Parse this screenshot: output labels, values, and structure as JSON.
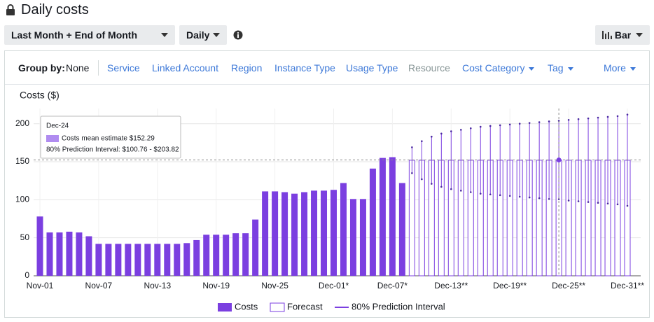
{
  "header": {
    "title": "Daily costs"
  },
  "controls": {
    "date_range": "Last Month + End of Month",
    "granularity": "Daily",
    "chart_style": "Bar"
  },
  "group_by": {
    "label": "Group by:",
    "value": "None",
    "options": [
      "Service",
      "Linked Account",
      "Region",
      "Instance Type",
      "Usage Type",
      "Resource",
      "Cost Category",
      "Tag",
      "More"
    ]
  },
  "chart_data": {
    "type": "bar",
    "ylabel": "Costs ($)",
    "categories": [
      "Nov-01",
      null,
      null,
      null,
      null,
      null,
      "Nov-07",
      null,
      null,
      null,
      null,
      null,
      "Nov-13",
      null,
      null,
      null,
      null,
      null,
      "Nov-19",
      null,
      null,
      null,
      null,
      null,
      "Nov-25",
      null,
      null,
      null,
      null,
      null,
      "Dec-01*",
      null,
      null,
      null,
      null,
      null,
      "Dec-07*",
      null,
      null,
      null,
      null,
      null,
      "Dec-13**",
      null,
      null,
      null,
      null,
      null,
      "Dec-19**",
      null,
      null,
      null,
      null,
      null,
      "Dec-25**",
      null,
      null,
      null,
      null,
      null,
      "Dec-31**"
    ],
    "series": [
      {
        "name": "Costs",
        "color": "#7b3fe0",
        "values": [
          78,
          57,
          57,
          58,
          57,
          52,
          42,
          42,
          42,
          42,
          42,
          42,
          42,
          42,
          42,
          43,
          47,
          54,
          54,
          54,
          56,
          56,
          74,
          111,
          111,
          110,
          108,
          110,
          112,
          112,
          113,
          122,
          101,
          101,
          141,
          155,
          156,
          122,
          null,
          null,
          null,
          null,
          null,
          null,
          null,
          null,
          null,
          null,
          null,
          null,
          null,
          null,
          null,
          null,
          null,
          null,
          null,
          null,
          null,
          null,
          null
        ]
      },
      {
        "name": "Forecast",
        "color": "#7b3fe0",
        "values": [
          null,
          null,
          null,
          null,
          null,
          null,
          null,
          null,
          null,
          null,
          null,
          null,
          null,
          null,
          null,
          null,
          null,
          null,
          null,
          null,
          null,
          null,
          null,
          null,
          null,
          null,
          null,
          null,
          null,
          null,
          null,
          null,
          null,
          null,
          null,
          null,
          null,
          null,
          152,
          152,
          152,
          152,
          152,
          152,
          152,
          152,
          152,
          152,
          152,
          152,
          152,
          152,
          152,
          152.29,
          152,
          152,
          152,
          152,
          152,
          152,
          152
        ]
      },
      {
        "name": "80% Prediction Interval",
        "color": "#7b3fe0",
        "low": [
          null,
          null,
          null,
          null,
          null,
          null,
          null,
          null,
          null,
          null,
          null,
          null,
          null,
          null,
          null,
          null,
          null,
          null,
          null,
          null,
          null,
          null,
          null,
          null,
          null,
          null,
          null,
          null,
          null,
          null,
          null,
          null,
          null,
          null,
          null,
          null,
          null,
          null,
          135,
          127,
          121,
          117,
          114,
          112,
          110,
          108,
          107,
          106,
          105,
          104,
          103,
          102,
          101,
          100.76,
          99,
          98,
          97,
          96,
          95,
          94,
          92
        ],
        "high": [
          null,
          null,
          null,
          null,
          null,
          null,
          null,
          null,
          null,
          null,
          null,
          null,
          null,
          null,
          null,
          null,
          null,
          null,
          null,
          null,
          null,
          null,
          null,
          null,
          null,
          null,
          null,
          null,
          null,
          null,
          null,
          null,
          null,
          null,
          null,
          null,
          null,
          null,
          169,
          177,
          183,
          187,
          190,
          192,
          194,
          196,
          197,
          198,
          199,
          200,
          201,
          202,
          203,
          203.82,
          205,
          206,
          207,
          208,
          209,
          210,
          212
        ]
      }
    ],
    "ylim": [
      0,
      220
    ],
    "yticks": [
      0,
      50,
      100,
      150,
      200
    ],
    "grid": true,
    "legend": "bottom",
    "tooltip": {
      "index": 53,
      "title": "Dec-24",
      "line1": "Costs mean estimate $152.29",
      "line2": "80% Prediction Interval: $100.76 - $203.82"
    }
  }
}
